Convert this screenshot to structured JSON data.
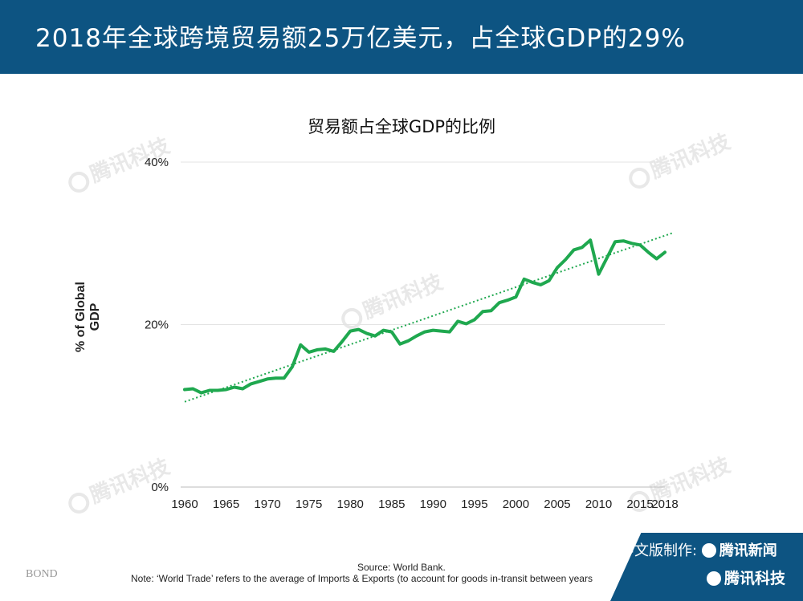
{
  "header": {
    "title": "2018年全球跨境贸易额25万亿美元，占全球GDP的29%"
  },
  "chart_data": {
    "type": "line",
    "title": "贸易额占全球GDP的比例",
    "xlabel": "",
    "ylabel": "% of Global GDP",
    "x_ticks": [
      "1960",
      "1965",
      "1970",
      "1975",
      "1980",
      "1985",
      "1990",
      "1995",
      "2000",
      "2005",
      "2010",
      "2015",
      "2018"
    ],
    "y_ticks": [
      "0%",
      "20%",
      "40%"
    ],
    "xlim": [
      1960,
      2018
    ],
    "ylim": [
      0,
      40
    ],
    "grid": "horizontal",
    "colors": {
      "series": "#1fa84f"
    },
    "series": [
      {
        "values": [
          {
            "x": 1960,
            "y": 12.0
          },
          {
            "x": 1961,
            "y": 12.1
          },
          {
            "x": 1962,
            "y": 11.6
          },
          {
            "x": 1963,
            "y": 11.9
          },
          {
            "x": 1964,
            "y": 11.9
          },
          {
            "x": 1965,
            "y": 12.0
          },
          {
            "x": 1966,
            "y": 12.3
          },
          {
            "x": 1967,
            "y": 12.1
          },
          {
            "x": 1968,
            "y": 12.7
          },
          {
            "x": 1969,
            "y": 13.0
          },
          {
            "x": 1970,
            "y": 13.3
          },
          {
            "x": 1971,
            "y": 13.4
          },
          {
            "x": 1972,
            "y": 13.4
          },
          {
            "x": 1973,
            "y": 14.8
          },
          {
            "x": 1974,
            "y": 17.5
          },
          {
            "x": 1975,
            "y": 16.6
          },
          {
            "x": 1976,
            "y": 16.9
          },
          {
            "x": 1977,
            "y": 17.0
          },
          {
            "x": 1978,
            "y": 16.7
          },
          {
            "x": 1979,
            "y": 17.9
          },
          {
            "x": 1980,
            "y": 19.2
          },
          {
            "x": 1981,
            "y": 19.4
          },
          {
            "x": 1982,
            "y": 18.9
          },
          {
            "x": 1983,
            "y": 18.6
          },
          {
            "x": 1984,
            "y": 19.3
          },
          {
            "x": 1985,
            "y": 19.1
          },
          {
            "x": 1986,
            "y": 17.6
          },
          {
            "x": 1987,
            "y": 18.0
          },
          {
            "x": 1988,
            "y": 18.6
          },
          {
            "x": 1989,
            "y": 19.1
          },
          {
            "x": 1990,
            "y": 19.3
          },
          {
            "x": 1991,
            "y": 19.2
          },
          {
            "x": 1992,
            "y": 19.1
          },
          {
            "x": 1993,
            "y": 20.4
          },
          {
            "x": 1994,
            "y": 20.1
          },
          {
            "x": 1995,
            "y": 20.6
          },
          {
            "x": 1996,
            "y": 21.6
          },
          {
            "x": 1997,
            "y": 21.7
          },
          {
            "x": 1998,
            "y": 22.7
          },
          {
            "x": 1999,
            "y": 23.0
          },
          {
            "x": 2000,
            "y": 23.4
          },
          {
            "x": 2001,
            "y": 25.6
          },
          {
            "x": 2002,
            "y": 25.2
          },
          {
            "x": 2003,
            "y": 24.9
          },
          {
            "x": 2004,
            "y": 25.4
          },
          {
            "x": 2005,
            "y": 27.0
          },
          {
            "x": 2006,
            "y": 28.0
          },
          {
            "x": 2007,
            "y": 29.2
          },
          {
            "x": 2008,
            "y": 29.5
          },
          {
            "x": 2009,
            "y": 30.4
          },
          {
            "x": 2010,
            "y": 26.2
          },
          {
            "x": 2011,
            "y": 28.2
          },
          {
            "x": 2012,
            "y": 30.2
          },
          {
            "x": 2013,
            "y": 30.3
          },
          {
            "x": 2014,
            "y": 30.0
          },
          {
            "x": 2015,
            "y": 29.8
          },
          {
            "x": 2016,
            "y": 28.9
          },
          {
            "x": 2017,
            "y": 28.1
          },
          {
            "x": 2018,
            "y": 28.9
          }
        ]
      }
    ],
    "trendline": {
      "style": "dotted",
      "from": {
        "x": 1960,
        "y": 10.5
      },
      "to": {
        "x": 2019,
        "y": 31.3
      }
    }
  },
  "footer": {
    "source": "Source: World Bank.",
    "note": "Note: ‘World Trade’ refers to the average of Imports & Exports (to account for goods in-transit between years",
    "bond": "BOND",
    "credit_label": "中文版制作:",
    "credit_brand_news": "腾讯新闻",
    "credit_brand_tech": "腾讯科技"
  },
  "watermark": {
    "text": "腾讯科技"
  }
}
